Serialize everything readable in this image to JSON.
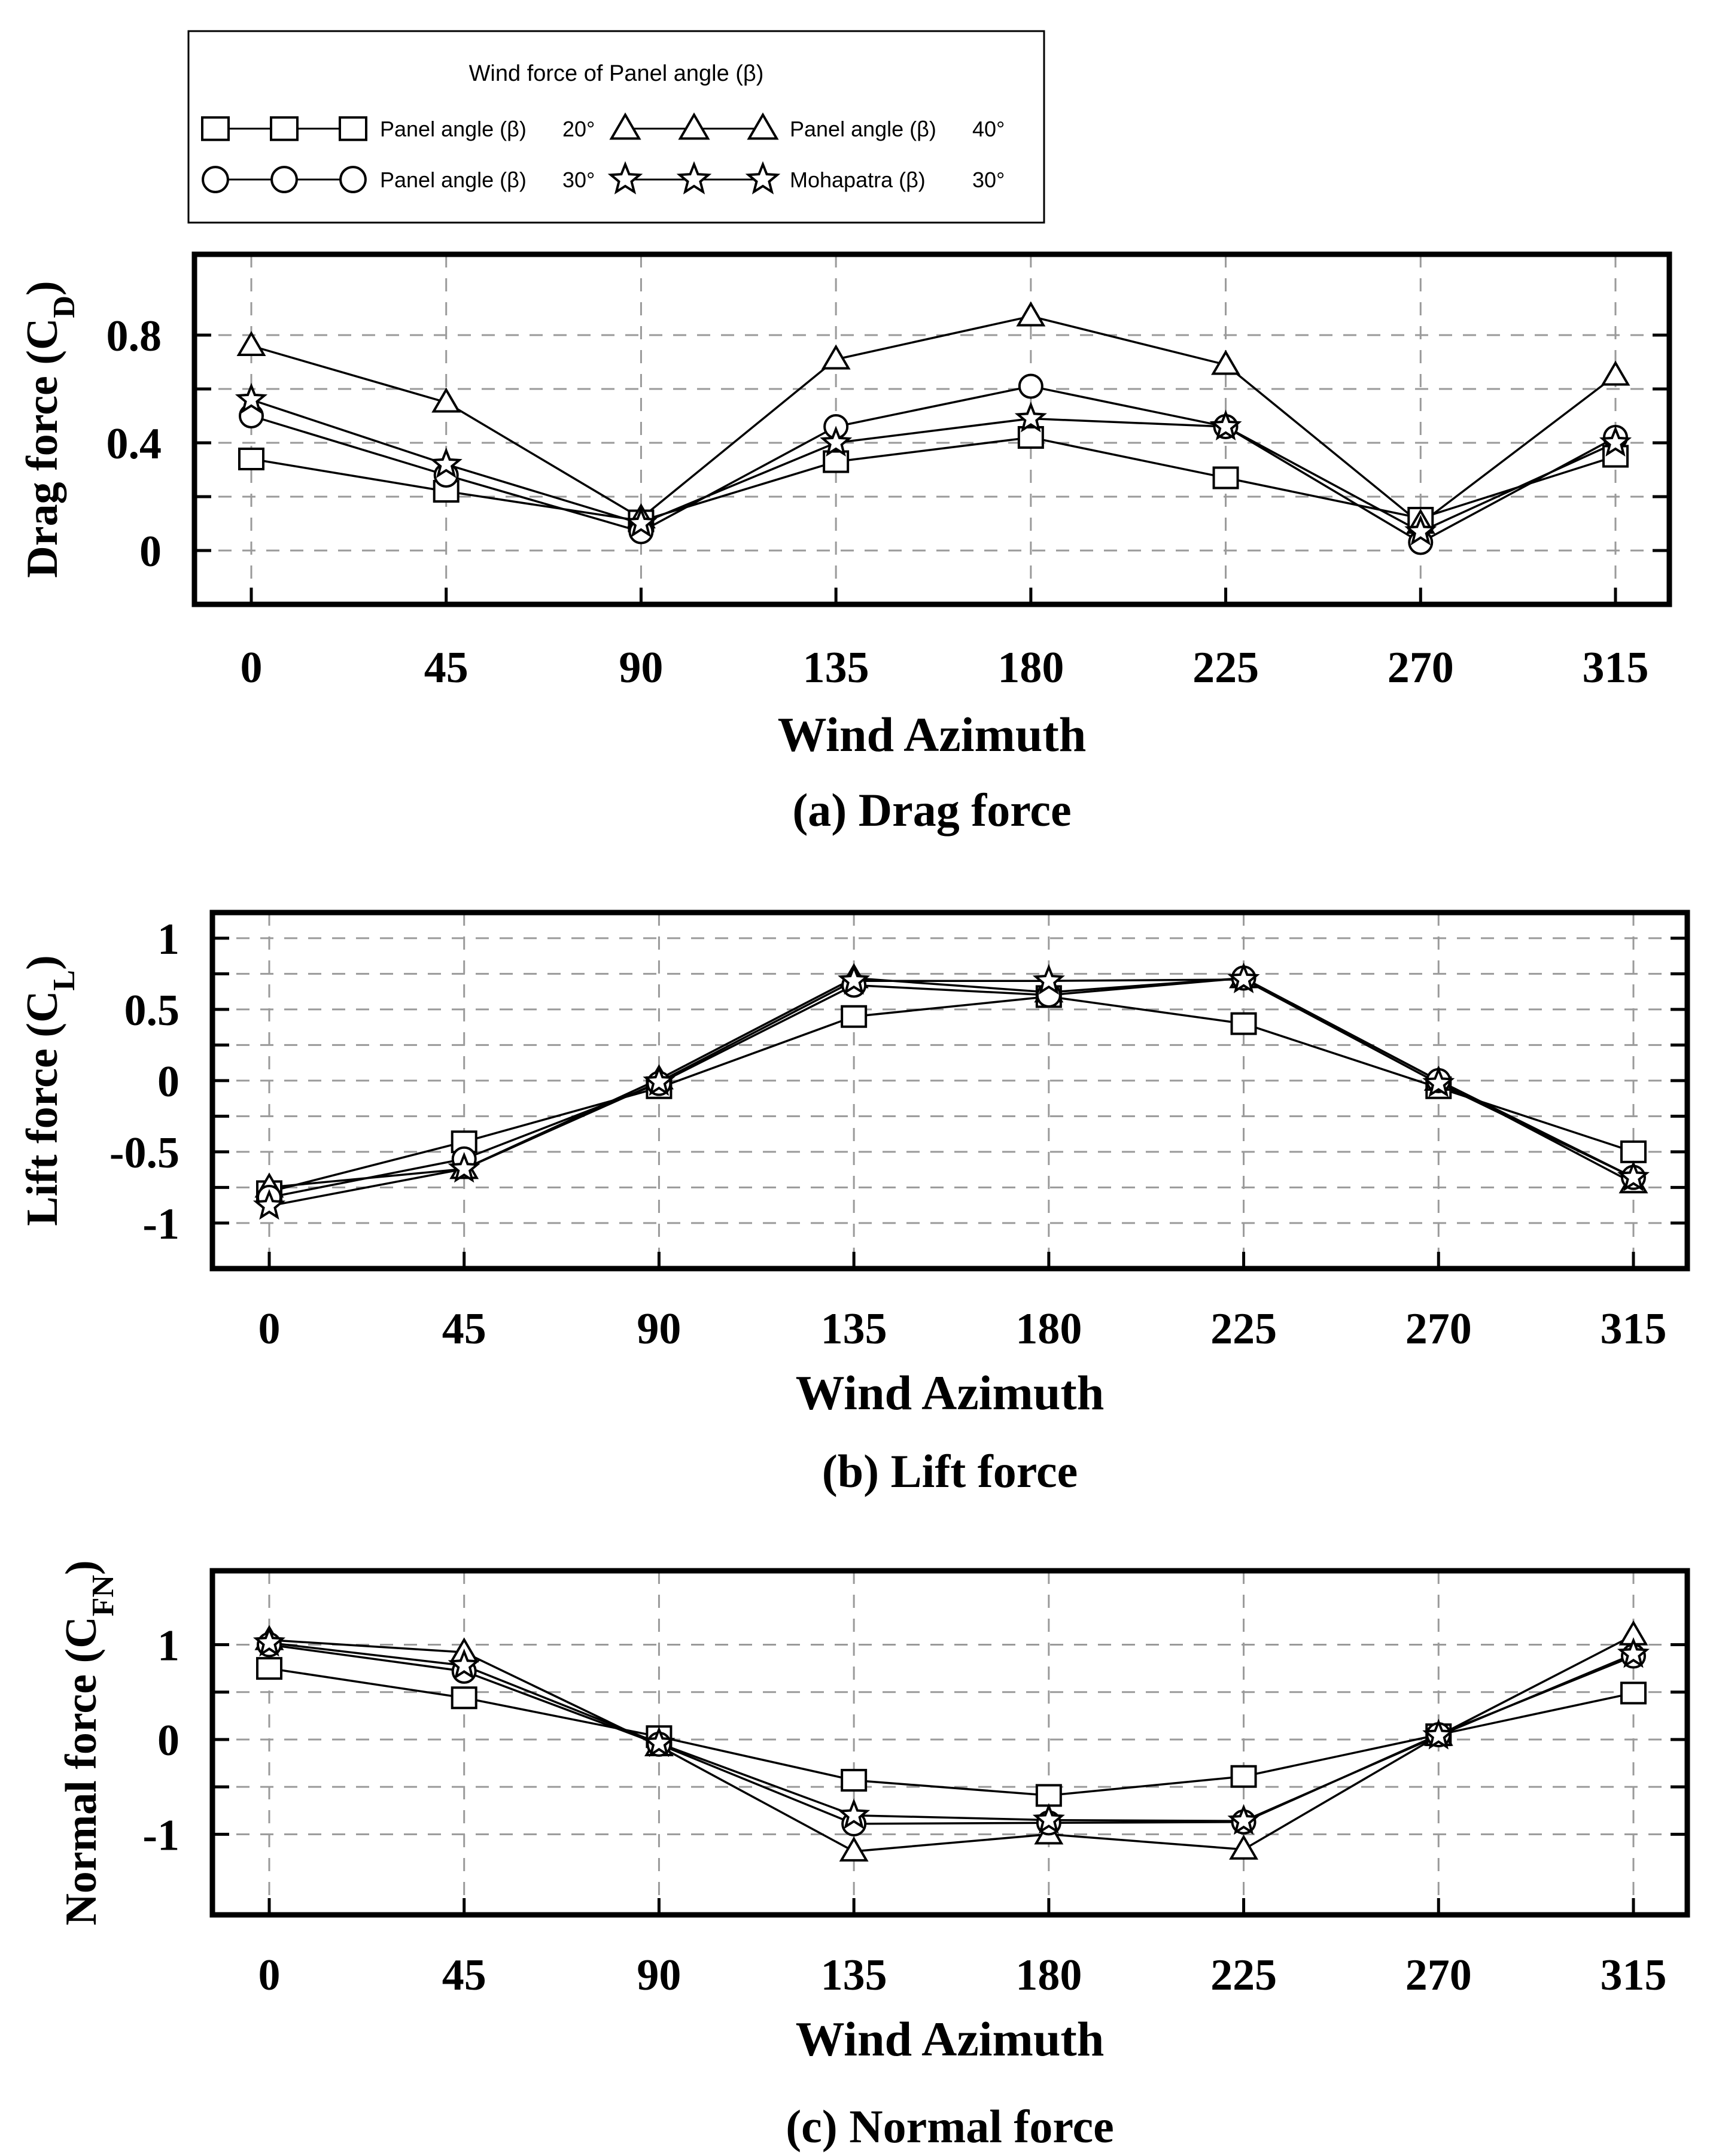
{
  "legend": {
    "title": "Wind force of Panel angle (β)",
    "entries": [
      {
        "marker": "square",
        "label": "Panel angle (β)",
        "value": "20°"
      },
      {
        "marker": "triangle",
        "label": "Panel angle (β)",
        "value": "40°"
      },
      {
        "marker": "circle",
        "label": "Panel angle (β)",
        "value": "30°"
      },
      {
        "marker": "star",
        "label": "Mohapatra (β)",
        "value": "30°"
      }
    ]
  },
  "chart_data": [
    {
      "id": "drag",
      "type": "line",
      "caption": "(a) Drag force",
      "xlabel": "Wind Azimuth",
      "ylabel": "Drag force (C",
      "ylabel_sub": "D",
      "ylabel_close": ")",
      "x": [
        0,
        45,
        90,
        135,
        180,
        225,
        270,
        315
      ],
      "xticks": [
        "0",
        "45",
        "90",
        "135",
        "180",
        "225",
        "270",
        "315"
      ],
      "yticks": [
        "0.8",
        "0.4",
        "0"
      ],
      "ytick_values": [
        0.8,
        0.4,
        0
      ],
      "ylim": [
        -0.2,
        1.1
      ],
      "series": [
        {
          "name": "Panel angle (β) 20°",
          "marker": "square",
          "values": [
            0.34,
            0.22,
            0.11,
            0.33,
            0.42,
            0.27,
            0.12,
            0.35
          ]
        },
        {
          "name": "Panel angle (β) 40°",
          "marker": "triangle",
          "values": [
            0.76,
            0.55,
            0.12,
            0.71,
            0.87,
            0.69,
            0.1,
            0.65
          ]
        },
        {
          "name": "Panel angle (β) 30°",
          "marker": "circle",
          "values": [
            0.5,
            0.28,
            0.07,
            0.46,
            0.61,
            0.46,
            0.03,
            0.42
          ]
        },
        {
          "name": "Mohapatra (β) 30°",
          "marker": "star",
          "values": [
            0.56,
            0.32,
            0.1,
            0.4,
            0.49,
            0.46,
            0.07,
            0.4
          ]
        }
      ]
    },
    {
      "id": "lift",
      "type": "line",
      "caption": "(b) Lift force",
      "xlabel": "Wind Azimuth",
      "ylabel": "Lift force (C",
      "ylabel_sub": "L",
      "ylabel_close": ")",
      "x": [
        0,
        45,
        90,
        135,
        180,
        225,
        270,
        315
      ],
      "xticks": [
        "0",
        "45",
        "90",
        "135",
        "180",
        "225",
        "270",
        "315"
      ],
      "yticks": [
        "1",
        "0.5",
        "0",
        "-0.5",
        "-1"
      ],
      "ytick_values": [
        1,
        0.5,
        0,
        -0.5,
        -1
      ],
      "ylim": [
        -1.32,
        1.18
      ],
      "series": [
        {
          "name": "Panel angle (β) 20°",
          "marker": "square",
          "values": [
            -0.78,
            -0.43,
            -0.05,
            0.45,
            0.59,
            0.4,
            -0.05,
            -0.5
          ]
        },
        {
          "name": "Panel angle (β) 40°",
          "marker": "triangle",
          "values": [
            -0.75,
            -0.62,
            0.01,
            0.72,
            0.62,
            0.72,
            0.0,
            -0.72
          ]
        },
        {
          "name": "Panel angle (β) 30°",
          "marker": "circle",
          "values": [
            -0.82,
            -0.55,
            -0.02,
            0.67,
            0.6,
            0.72,
            0.0,
            -0.68
          ]
        },
        {
          "name": "Mohapatra (β) 30°",
          "marker": "star",
          "values": [
            -0.88,
            -0.62,
            -0.01,
            0.7,
            0.7,
            0.71,
            -0.02,
            -0.68
          ]
        }
      ]
    },
    {
      "id": "normal",
      "type": "line",
      "caption": "(c) Normal force",
      "xlabel": "Wind Azimuth",
      "ylabel": "Normal force (C",
      "ylabel_sub": "FN",
      "ylabel_close": ")",
      "x": [
        0,
        45,
        90,
        135,
        180,
        225,
        270,
        315
      ],
      "xticks": [
        "0",
        "45",
        "90",
        "135",
        "180",
        "225",
        "270",
        "315"
      ],
      "yticks": [
        "1",
        "0",
        "-1"
      ],
      "ytick_values": [
        1,
        0,
        -1
      ],
      "ylim": [
        -1.85,
        1.78
      ],
      "series": [
        {
          "name": "Panel angle (β) 20°",
          "marker": "square",
          "values": [
            0.75,
            0.44,
            0.03,
            -0.43,
            -0.59,
            -0.39,
            0.05,
            0.49
          ]
        },
        {
          "name": "Panel angle (β) 40°",
          "marker": "triangle",
          "values": [
            1.05,
            0.92,
            -0.07,
            -1.18,
            -1.0,
            -1.16,
            0.04,
            1.1
          ]
        },
        {
          "name": "Panel angle (β) 30°",
          "marker": "circle",
          "values": [
            1.0,
            0.72,
            -0.05,
            -0.89,
            -0.88,
            -0.87,
            0.05,
            0.88
          ]
        },
        {
          "name": "Mohapatra (β) 30°",
          "marker": "star",
          "values": [
            1.02,
            0.78,
            -0.04,
            -0.8,
            -0.85,
            -0.86,
            0.04,
            0.9
          ]
        }
      ]
    }
  ]
}
